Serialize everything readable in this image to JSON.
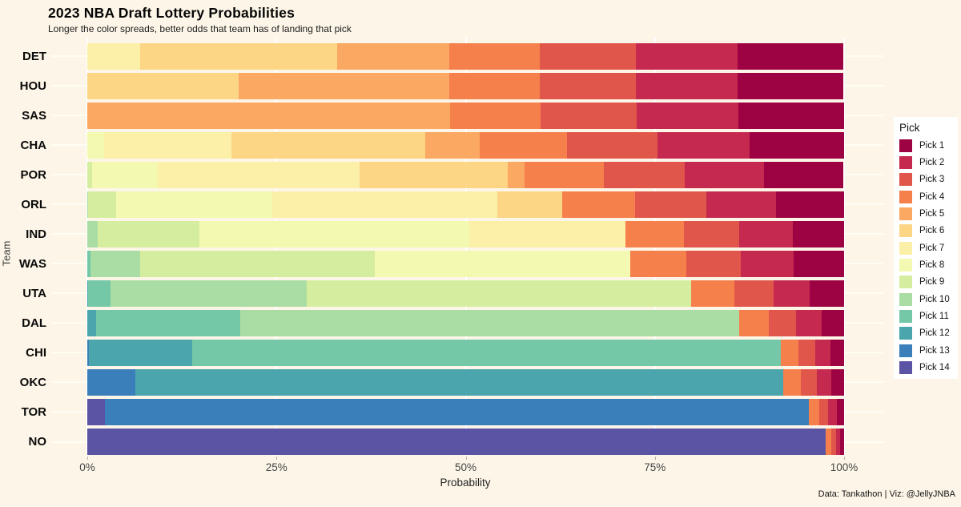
{
  "title": "2023 NBA Draft Lottery Probabilities",
  "subtitle": "Longer the color spreads, better odds that team has of landing that pick",
  "caption": "Data: Tankathon | Viz: @JellyJNBA",
  "colors": {
    "background": "#fdf6e8",
    "grid": "#ffffff",
    "legend_background": "#ffffff",
    "pick_palette_1_to_14": [
      "#9d0343",
      "#c5294f",
      "#e1564a",
      "#f6804c",
      "#fba862",
      "#fcd585",
      "#fcf0a8",
      "#f3f9b0",
      "#d5ed9e",
      "#aadda3",
      "#74c7a7",
      "#4aa5ac",
      "#3a7fba",
      "#5b53a4"
    ]
  },
  "legend": {
    "title": "Pick",
    "entries": [
      "Pick 1",
      "Pick 2",
      "Pick 3",
      "Pick 4",
      "Pick 5",
      "Pick 6",
      "Pick 7",
      "Pick 8",
      "Pick 9",
      "Pick 10",
      "Pick 11",
      "Pick 12",
      "Pick 13",
      "Pick 14"
    ]
  },
  "chart_data": {
    "type": "bar",
    "stacked": true,
    "orientation": "horizontal",
    "title": "2023 NBA Draft Lottery Probabilities",
    "xlabel": "Probability",
    "ylabel": "Team",
    "xlim": [
      0,
      100
    ],
    "x_ticks": [
      {
        "label": "0%",
        "value": 0
      },
      {
        "label": "25%",
        "value": 25
      },
      {
        "label": "50%",
        "value": 50
      },
      {
        "label": "75%",
        "value": 75
      },
      {
        "label": "100%",
        "value": 100
      }
    ],
    "grid": true,
    "legend_position": "right",
    "series_labels": [
      "Pick 1",
      "Pick 2",
      "Pick 3",
      "Pick 4",
      "Pick 5",
      "Pick 6",
      "Pick 7",
      "Pick 8",
      "Pick 9",
      "Pick 10",
      "Pick 11",
      "Pick 12",
      "Pick 13",
      "Pick 14"
    ],
    "stack_order_left_to_right": "Pick 14 first, Pick 1 last",
    "teams": [
      {
        "team": "DET",
        "pct_pick1_to_pick14": [
          14.0,
          13.4,
          12.7,
          12.0,
          14.8,
          26.0,
          7.0,
          0,
          0,
          0,
          0,
          0,
          0,
          0
        ]
      },
      {
        "team": "HOU",
        "pct_pick1_to_pick14": [
          14.0,
          13.4,
          12.7,
          12.0,
          27.8,
          20.0,
          0,
          0,
          0,
          0,
          0,
          0,
          0,
          0
        ]
      },
      {
        "team": "SAS",
        "pct_pick1_to_pick14": [
          14.0,
          13.4,
          12.7,
          12.0,
          47.9,
          0,
          0,
          0,
          0,
          0,
          0,
          0,
          0,
          0
        ]
      },
      {
        "team": "CHA",
        "pct_pick1_to_pick14": [
          12.5,
          12.2,
          11.9,
          11.5,
          7.2,
          25.7,
          16.8,
          2.2,
          0,
          0,
          0,
          0,
          0,
          0
        ]
      },
      {
        "team": "POR",
        "pct_pick1_to_pick14": [
          10.5,
          10.5,
          10.6,
          10.5,
          2.2,
          19.6,
          26.7,
          8.7,
          0.6,
          0,
          0,
          0,
          0,
          0
        ]
      },
      {
        "team": "ORL",
        "pct_pick1_to_pick14": [
          9.0,
          9.2,
          9.4,
          9.6,
          0,
          8.6,
          29.8,
          20.6,
          3.7,
          0.1,
          0,
          0,
          0,
          0
        ]
      },
      {
        "team": "IND",
        "pct_pick1_to_pick14": [
          6.8,
          7.1,
          7.3,
          7.7,
          0,
          0,
          20.6,
          35.7,
          13.4,
          1.4,
          0,
          0,
          0,
          0
        ]
      },
      {
        "team": "WAS",
        "pct_pick1_to_pick14": [
          6.7,
          6.9,
          7.2,
          7.5,
          0,
          0,
          0,
          33.7,
          31.0,
          6.6,
          0.4,
          0,
          0,
          0
        ]
      },
      {
        "team": "UTA",
        "pct_pick1_to_pick14": [
          4.5,
          4.8,
          5.2,
          5.7,
          0,
          0,
          0,
          0,
          50.8,
          25.9,
          3.0,
          0.1,
          0,
          0
        ]
      },
      {
        "team": "DAL",
        "pct_pick1_to_pick14": [
          3.0,
          3.3,
          3.6,
          4.0,
          0,
          0,
          0,
          0,
          0,
          65.9,
          19.0,
          1.2,
          0,
          0
        ]
      },
      {
        "team": "CHI",
        "pct_pick1_to_pick14": [
          1.8,
          2.0,
          2.2,
          2.4,
          0,
          0,
          0,
          0,
          0,
          0,
          77.7,
          13.7,
          0.2,
          0
        ]
      },
      {
        "team": "OKC",
        "pct_pick1_to_pick14": [
          1.7,
          1.9,
          2.1,
          2.3,
          0,
          0,
          0,
          0,
          0,
          0,
          0,
          85.6,
          6.4,
          0
        ]
      },
      {
        "team": "TOR",
        "pct_pick1_to_pick14": [
          1.0,
          1.1,
          1.2,
          1.4,
          0,
          0,
          0,
          0,
          0,
          0,
          0,
          0,
          93.0,
          2.3
        ]
      },
      {
        "team": "NO",
        "pct_pick1_to_pick14": [
          0.5,
          0.6,
          0.6,
          0.7,
          0,
          0,
          0,
          0,
          0,
          0,
          0,
          0,
          0,
          97.6
        ]
      }
    ]
  }
}
